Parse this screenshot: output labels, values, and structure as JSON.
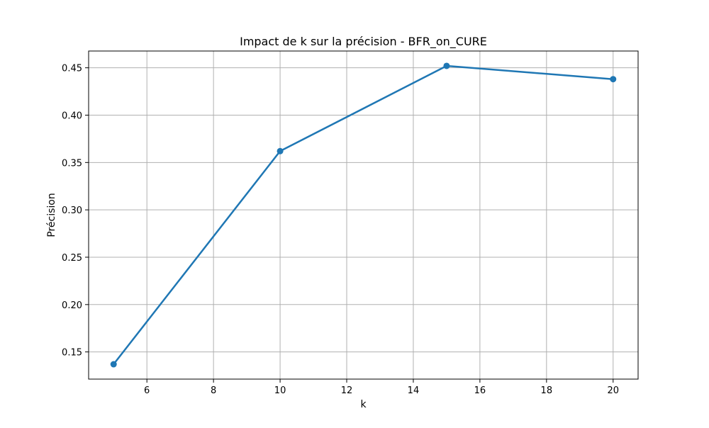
{
  "chart_data": {
    "type": "line",
    "title": "Impact de k sur la précision - BFR_on_CURE",
    "xlabel": "k",
    "ylabel": "Précision",
    "x": [
      5,
      10,
      15,
      20
    ],
    "series": [
      {
        "values": [
          0.137,
          0.362,
          0.452,
          0.438
        ],
        "color": "#1f77b4",
        "marker": "circle"
      }
    ],
    "xlim": [
      4.25,
      20.75
    ],
    "ylim": [
      0.1213,
      0.4677
    ],
    "xticks": [
      "6",
      "8",
      "10",
      "12",
      "14",
      "16",
      "18",
      "20"
    ],
    "yticks": [
      "0.15",
      "0.20",
      "0.25",
      "0.30",
      "0.35",
      "0.40",
      "0.45"
    ],
    "grid": true,
    "grid_color": "#b0b0b0",
    "legend": "none"
  }
}
